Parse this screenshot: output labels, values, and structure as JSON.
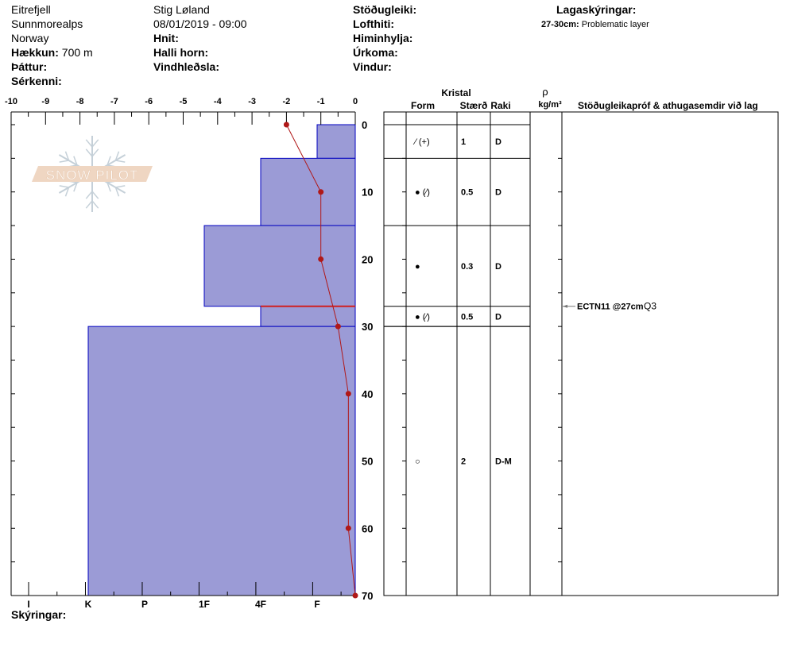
{
  "header": {
    "col1": {
      "location": "Eitrefjell",
      "range": "Sunnmorealps",
      "country": "Norway",
      "elevation_label": "Hækkun:",
      "elevation_value": "700 m",
      "aspect_label": "Þáttur:",
      "features_label": "Sérkenni:"
    },
    "col2": {
      "observer": "Stig Løland",
      "datetime": "08/01/2019 - 09:00",
      "coords_label": "Hnit:",
      "slope_label": "Halli horn:",
      "wind_loading_label": "Vindhleðsla:"
    },
    "col3": {
      "stability_label": "Stöðugleiki:",
      "air_temp_label": "Lofthiti:",
      "sky_label": "Himinhylja:",
      "precip_label": "Úrkoma:",
      "wind_label": "Vindur:"
    },
    "col4": {
      "title": "Lagaskýringar:",
      "note_range": "27-30cm:",
      "note_text": "Problematic layer"
    }
  },
  "footer": {
    "notes_label": "Skýringar:"
  },
  "logo": {
    "text": "SNOW PILOT"
  },
  "colors": {
    "hardness_fill": "#9b9bd6",
    "hardness_stroke": "#0000c0",
    "temperature": "#b01818",
    "problem_layer": "#d02020"
  },
  "chart_data": {
    "type": "snow-profile",
    "temperature_axis": {
      "ticks": [
        "-10",
        "-9",
        "-8",
        "-7",
        "-6",
        "-5",
        "-4",
        "-3",
        "-2",
        "-1",
        "0"
      ],
      "range": [
        -10,
        0
      ]
    },
    "depth_axis": {
      "ticks": [
        "0",
        "10",
        "20",
        "30",
        "40",
        "50",
        "60",
        "70"
      ],
      "range": [
        0,
        70
      ]
    },
    "hardness_axis": {
      "ticks": [
        "I",
        "K",
        "P",
        "1F",
        "4F",
        "F"
      ]
    },
    "layers": [
      {
        "top": 0,
        "bottom": 5,
        "hardness": "F"
      },
      {
        "top": 5,
        "bottom": 15,
        "hardness": "4F"
      },
      {
        "top": 15,
        "bottom": 27,
        "hardness": "1F"
      },
      {
        "top": 27,
        "bottom": 30,
        "hardness": "4F"
      },
      {
        "top": 30,
        "bottom": 70,
        "hardness": "K"
      }
    ],
    "problem_layer_depth": 27,
    "temperature_profile": [
      {
        "depth": 0,
        "temp": -2
      },
      {
        "depth": 10,
        "temp": -1
      },
      {
        "depth": 20,
        "temp": -1
      },
      {
        "depth": 30,
        "temp": -0.5
      },
      {
        "depth": 40,
        "temp": -0.2
      },
      {
        "depth": 60,
        "temp": -0.2
      },
      {
        "depth": 70,
        "temp": 0
      }
    ]
  },
  "table": {
    "group_header": "Kristal",
    "col_form": "Form",
    "col_size": "Stærð",
    "col_moisture": "Raki",
    "col_density_symbol": "ρ",
    "col_density_unit": "kg/m³",
    "col_comments": "Stöðugleikapróf & athugasemdir við lag",
    "rows": [
      {
        "top": 0,
        "bottom": 5,
        "form": "⁄ (+)",
        "size": "1",
        "moisture": "D"
      },
      {
        "top": 5,
        "bottom": 15,
        "form": "● (⁄)",
        "size": "0.5",
        "moisture": "D"
      },
      {
        "top": 15,
        "bottom": 27,
        "form": "●",
        "size": "0.3",
        "moisture": "D"
      },
      {
        "top": 27,
        "bottom": 30,
        "form": "● (⁄)",
        "size": "0.5",
        "moisture": "D"
      },
      {
        "top": 30,
        "bottom": 70,
        "form": "○",
        "size": "2",
        "moisture": "D-M"
      }
    ],
    "tests": [
      {
        "depth": 27,
        "label": "ECTN11 @27cm",
        "quality": "Q3"
      }
    ]
  }
}
